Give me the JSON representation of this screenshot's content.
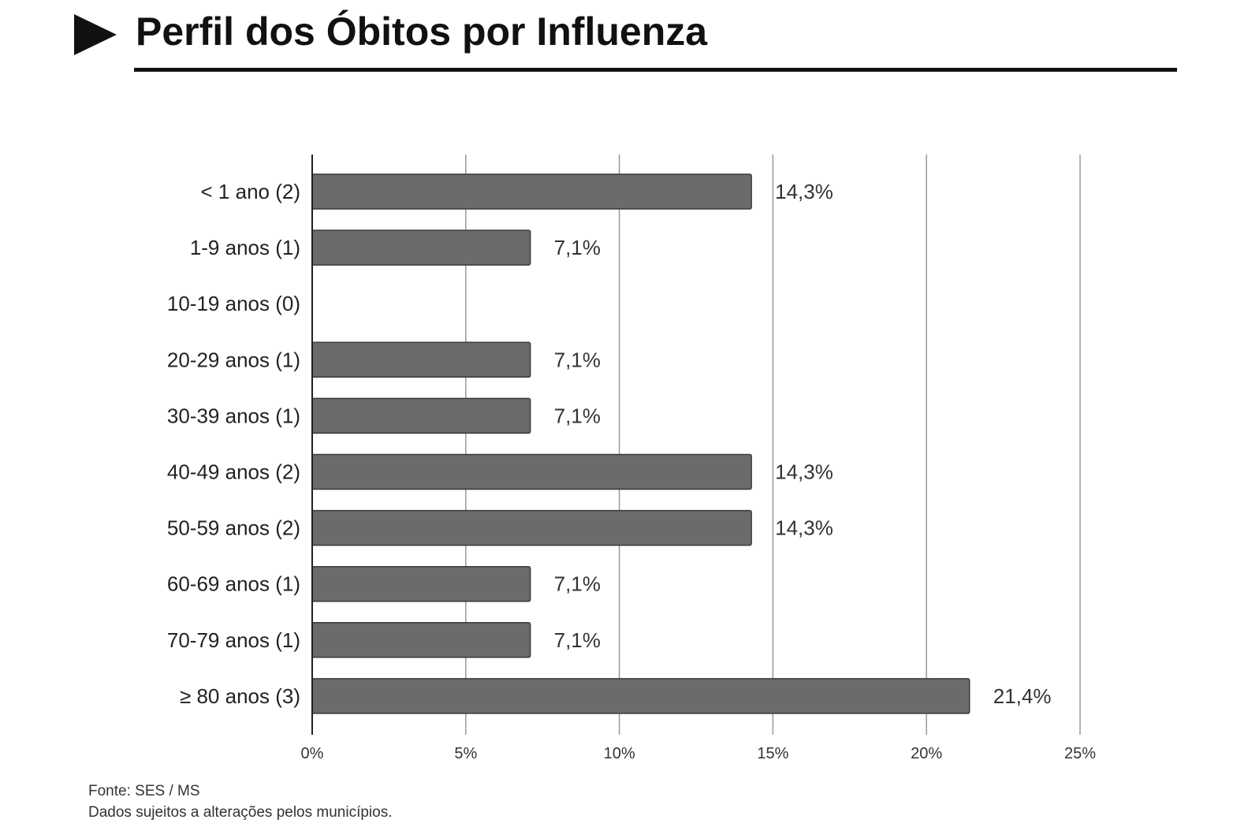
{
  "page": {
    "title": "Perfil dos Óbitos por Influenza"
  },
  "footnotes": {
    "source": "Fonte: SES / MS",
    "disclaimer": "Dados sujeitos a alterações pelos municípios."
  },
  "colors": {
    "bar_fill": "#6b6b6b",
    "bar_stroke": "#3a3a3a",
    "grid": "#9a9a9a",
    "axis": "#222222"
  },
  "chart_data": {
    "type": "bar",
    "orientation": "horizontal",
    "title": "",
    "xlabel": "",
    "ylabel": "",
    "categories": [
      "< 1 ano (2)",
      "1-9 anos (1)",
      "10-19 anos (0)",
      "20-29 anos (1)",
      "30-39 anos (1)",
      "40-49 anos (2)",
      "50-59 anos (2)",
      "60-69 anos (1)",
      "70-79 anos (1)",
      "≥ 80 anos (3)"
    ],
    "values": [
      14.3,
      7.1,
      0,
      7.1,
      7.1,
      14.3,
      14.3,
      7.1,
      7.1,
      21.4
    ],
    "value_labels": [
      "14,3%",
      "7,1%",
      "",
      "7,1%",
      "7,1%",
      "14,3%",
      "14,3%",
      "7,1%",
      "7,1%",
      "21,4%"
    ],
    "xlim": [
      0,
      25
    ],
    "x_ticks": [
      0,
      5,
      10,
      15,
      20,
      25
    ],
    "x_tick_labels": [
      "0%",
      "5%",
      "10%",
      "15%",
      "20%",
      "25%"
    ],
    "grid": "vertical",
    "legend": "none"
  }
}
